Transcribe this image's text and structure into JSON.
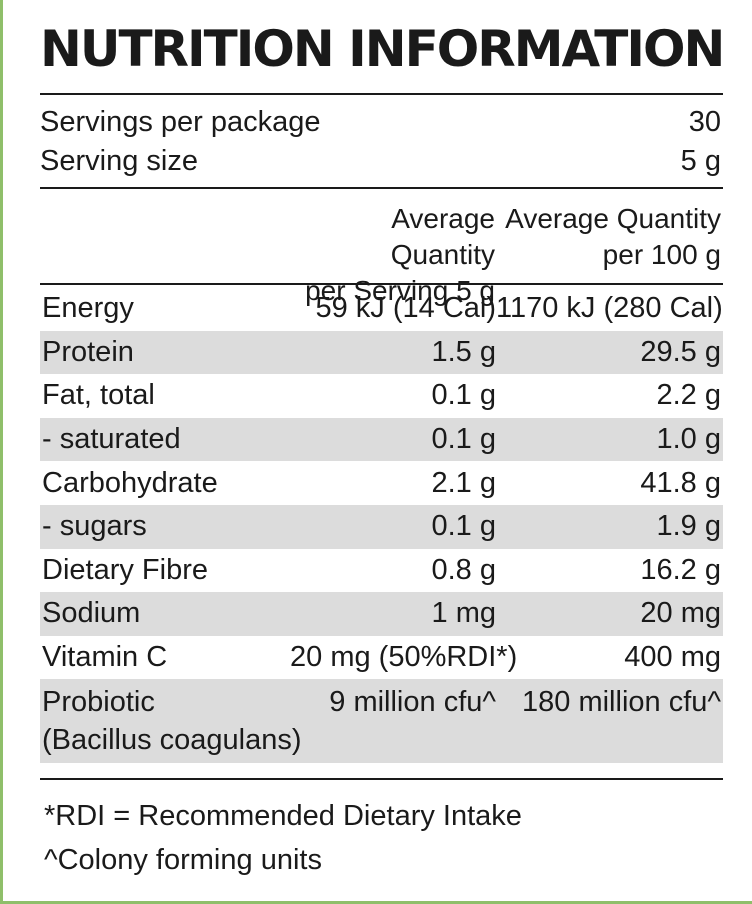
{
  "title": "NUTRITION INFORMATION",
  "servings": {
    "per_package_label": "Servings per package",
    "per_package_value": "30",
    "size_label": "Serving size",
    "size_value": "5 g"
  },
  "columns": {
    "serving_line1": "Average Quantity",
    "serving_line2": "per Serving 5 g",
    "per100_line1": "Average Quantity",
    "per100_line2": "per 100 g"
  },
  "nutrients": [
    {
      "name": "Energy",
      "serving": "59 kJ (14 Cal)",
      "per100": "1170 kJ (280 Cal)"
    },
    {
      "name": "Protein",
      "serving": "1.5 g",
      "per100": "29.5 g"
    },
    {
      "name": "Fat, total",
      "serving": "0.1 g",
      "per100": "2.2 g"
    },
    {
      "name": "- saturated",
      "serving": "0.1 g",
      "per100": "1.0 g"
    },
    {
      "name": "Carbohydrate",
      "serving": "2.1 g",
      "per100": "41.8 g"
    },
    {
      "name": "- sugars",
      "serving": "0.1 g",
      "per100": "1.9 g"
    },
    {
      "name": "Dietary Fibre",
      "serving": "0.8 g",
      "per100": "16.2 g"
    },
    {
      "name": "Sodium",
      "serving": "1 mg",
      "per100": "20 mg"
    },
    {
      "name": "Vitamin C",
      "serving": "20 mg (50%RDI*)",
      "per100": "400 mg"
    },
    {
      "name": "Probiotic",
      "name_line2": "(Bacillus coagulans)",
      "serving": "9 million cfu^",
      "per100": "180 million cfu^"
    }
  ],
  "footnotes": {
    "rdi": "*RDI = Recommended Dietary Intake",
    "cfu": "^Colony forming units"
  },
  "colors": {
    "accent_border": "#8fbf6a",
    "row_shade": "#dcdcdc",
    "text": "#1a1a1a"
  }
}
